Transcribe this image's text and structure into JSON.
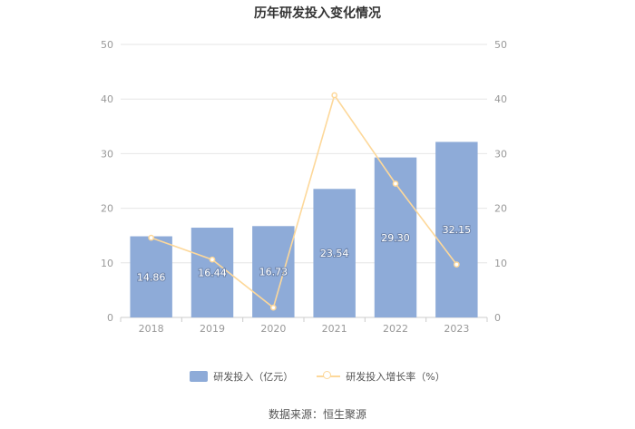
{
  "title": "历年研发投入变化情况",
  "source": "数据来源：恒生聚源",
  "colors": {
    "bar": "#8eabd8",
    "line": "#fdd89a",
    "grid": "#e6e6e6",
    "axis_text": "#999999",
    "label_text": "#ffffff"
  },
  "chart_data": {
    "type": "bar",
    "title": "历年研发投入变化情况",
    "categories": [
      "2018",
      "2019",
      "2020",
      "2021",
      "2022",
      "2023"
    ],
    "series": [
      {
        "name": "研发投入（亿元）",
        "type": "bar",
        "axis": "left",
        "values": [
          14.86,
          16.44,
          16.73,
          23.54,
          29.3,
          32.15
        ],
        "labels": [
          "14.86",
          "16.44",
          "16.73",
          "23.54",
          "29.30",
          "32.15"
        ]
      },
      {
        "name": "研发投入增长率（%）",
        "type": "line",
        "axis": "right",
        "values": [
          14.6,
          10.6,
          1.8,
          40.7,
          24.5,
          9.7
        ]
      }
    ],
    "y_left": {
      "min": 0,
      "max": 50,
      "ticks": [
        "0",
        "10",
        "20",
        "30",
        "40",
        "50"
      ]
    },
    "y_right": {
      "min": 0,
      "max": 50,
      "ticks": [
        "0",
        "10",
        "20",
        "30",
        "40",
        "50"
      ]
    },
    "grid": true,
    "legend_position": "bottom"
  }
}
